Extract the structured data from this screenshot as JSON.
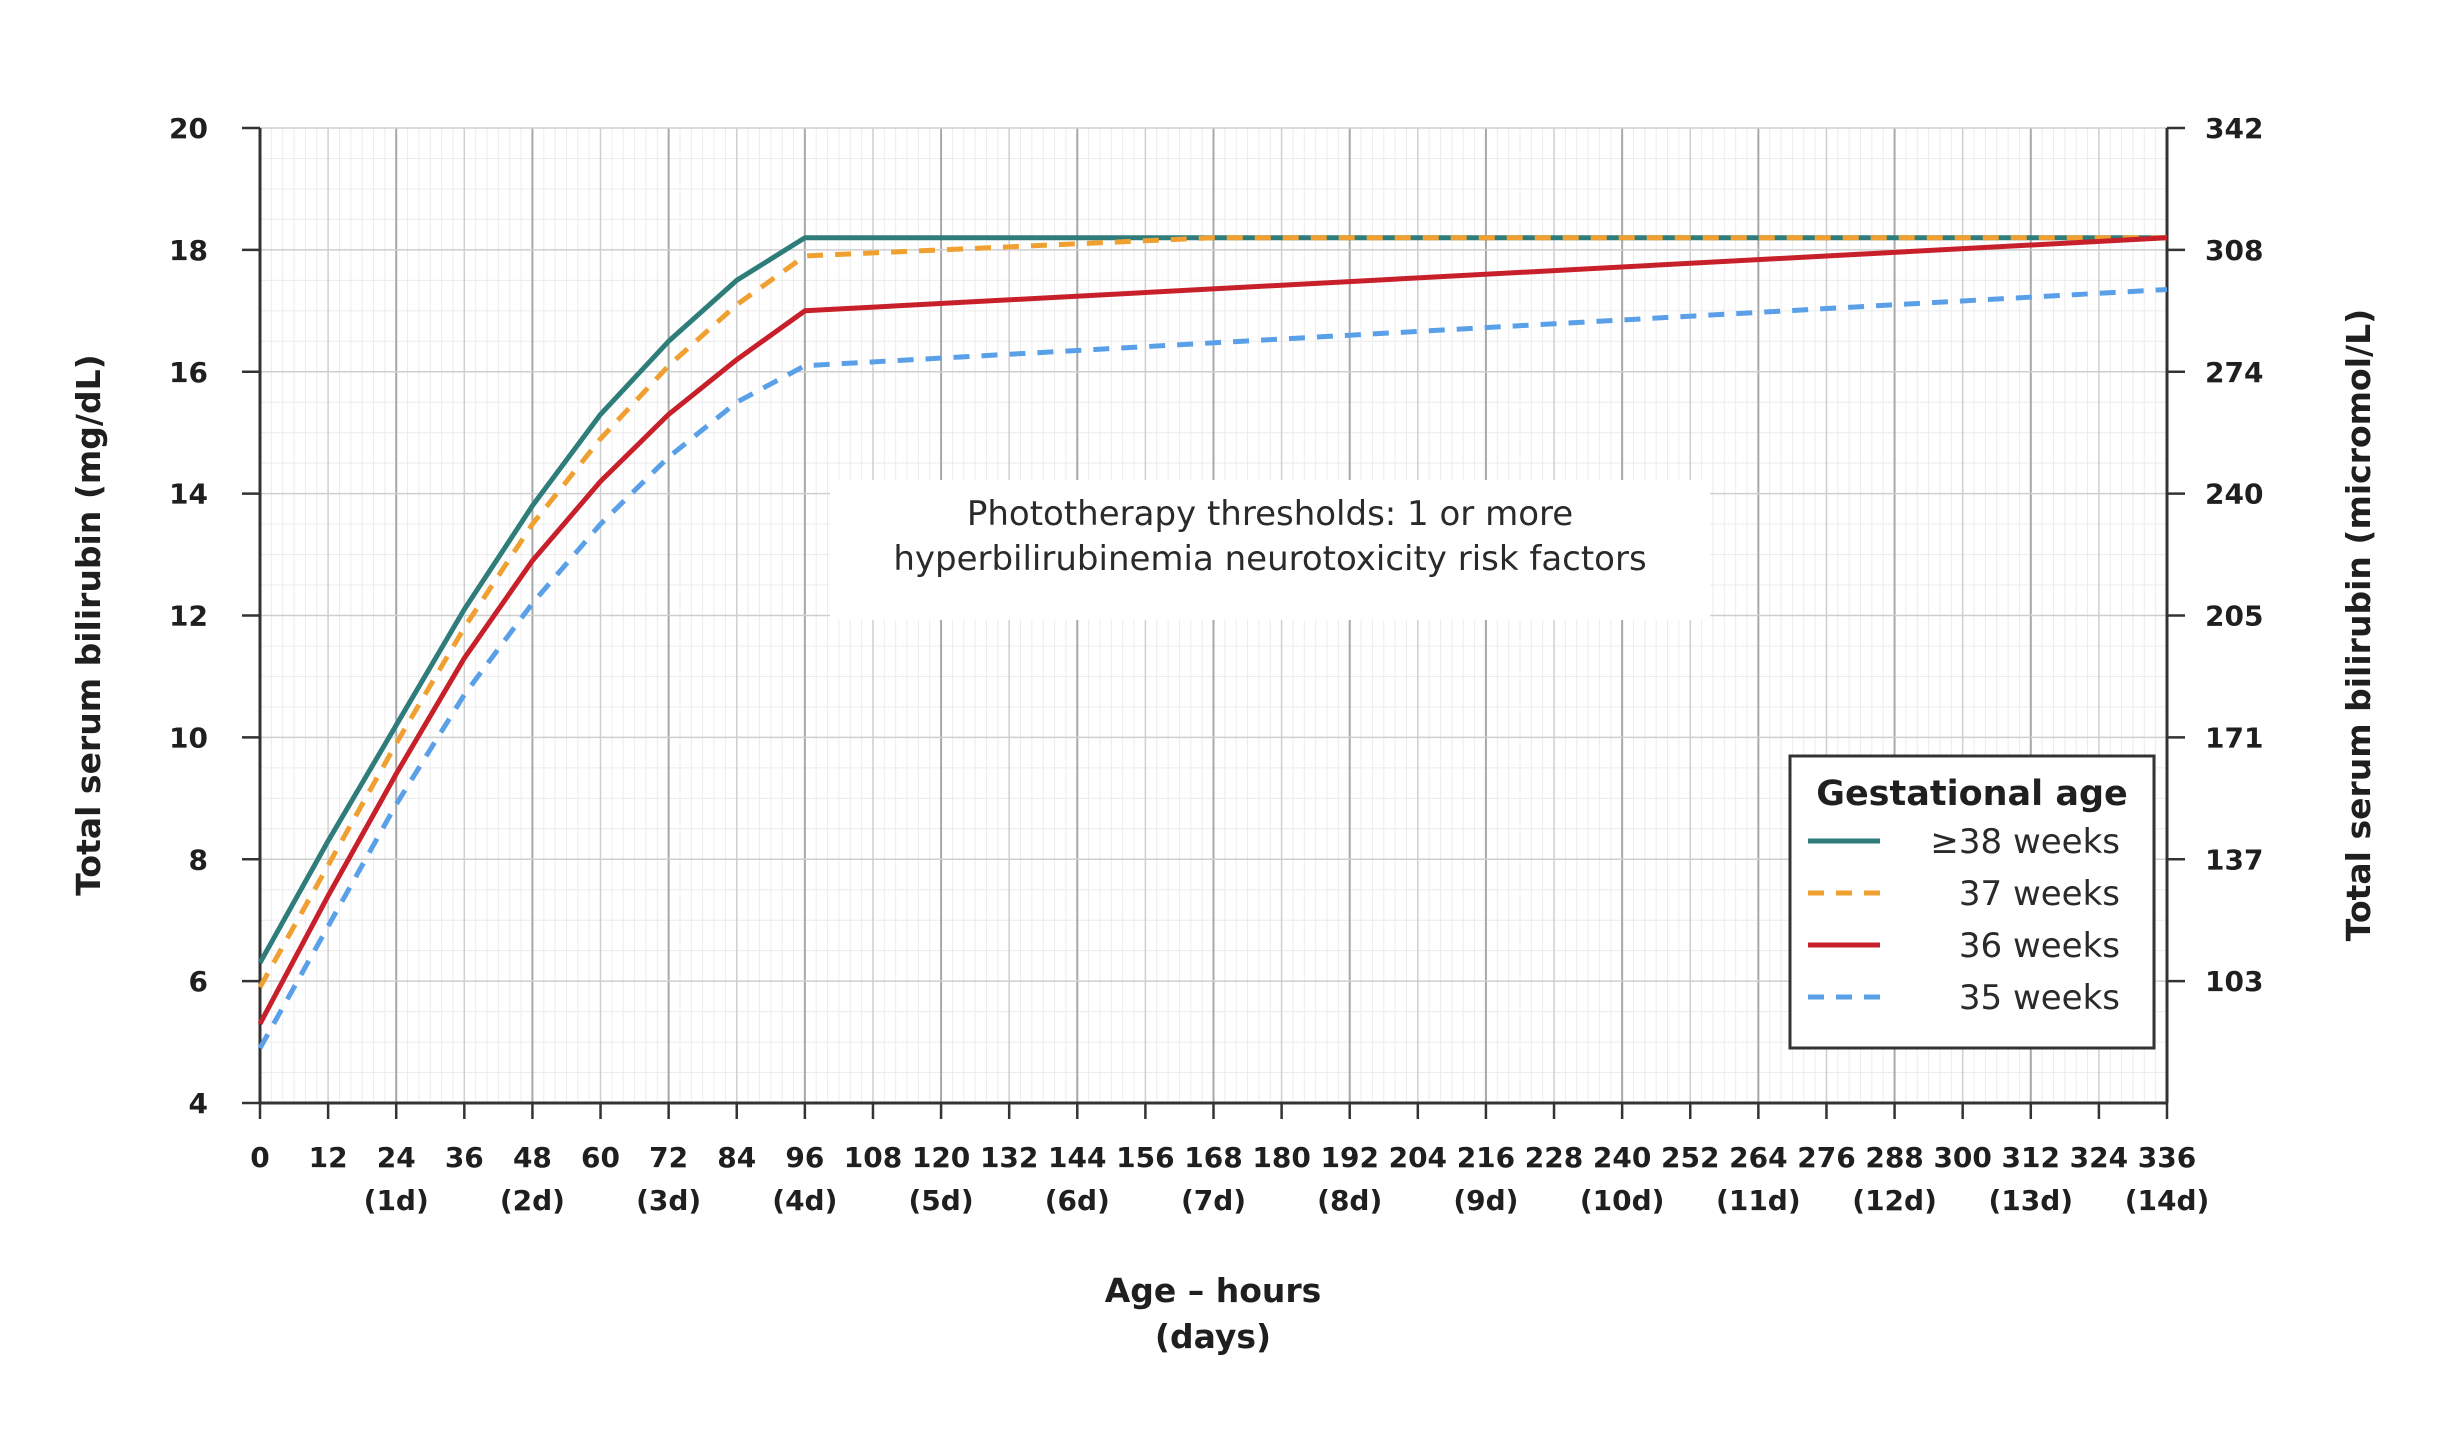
{
  "chart_data": {
    "type": "line",
    "annotation": [
      "Phototherapy thresholds: 1 or more",
      "hyperbilirubinemia neurotoxicity risk factors"
    ],
    "xlabel": [
      "Age – hours",
      "(days)"
    ],
    "ylabel": "Total serum bilirubin (mg/dL)",
    "y2label": "Total serum bilirubin (micromol/L)",
    "xlim": [
      0,
      336
    ],
    "ylim": [
      4,
      20
    ],
    "x_ticks": [
      0,
      12,
      24,
      36,
      48,
      60,
      72,
      84,
      96,
      108,
      120,
      132,
      144,
      156,
      168,
      180,
      192,
      204,
      216,
      228,
      240,
      252,
      264,
      276,
      288,
      300,
      312,
      324,
      336
    ],
    "x_day_ticks": [
      {
        "x": 24,
        "label": "(1d)"
      },
      {
        "x": 48,
        "label": "(2d)"
      },
      {
        "x": 72,
        "label": "(3d)"
      },
      {
        "x": 96,
        "label": "(4d)"
      },
      {
        "x": 120,
        "label": "(5d)"
      },
      {
        "x": 144,
        "label": "(6d)"
      },
      {
        "x": 168,
        "label": "(7d)"
      },
      {
        "x": 192,
        "label": "(8d)"
      },
      {
        "x": 216,
        "label": "(9d)"
      },
      {
        "x": 240,
        "label": "(10d)"
      },
      {
        "x": 264,
        "label": "(11d)"
      },
      {
        "x": 288,
        "label": "(12d)"
      },
      {
        "x": 312,
        "label": "(13d)"
      },
      {
        "x": 336,
        "label": "(14d)"
      }
    ],
    "y_ticks": [
      4,
      6,
      8,
      10,
      12,
      14,
      16,
      18,
      20
    ],
    "y2_ticks": [
      {
        "y": 6,
        "label": "103"
      },
      {
        "y": 8,
        "label": "137"
      },
      {
        "y": 10,
        "label": "171"
      },
      {
        "y": 12,
        "label": "205"
      },
      {
        "y": 14,
        "label": "240"
      },
      {
        "y": 16,
        "label": "274"
      },
      {
        "y": 18,
        "label": "308"
      },
      {
        "y": 20,
        "label": "342"
      }
    ],
    "grid": true,
    "legend": {
      "title": "Gestational age",
      "position": "bottom-right"
    },
    "series": [
      {
        "name": "≥38 weeks",
        "color": "#2e7d7a",
        "dash": "solid",
        "points": [
          [
            0,
            6.3
          ],
          [
            12,
            8.3
          ],
          [
            24,
            10.2
          ],
          [
            36,
            12.1
          ],
          [
            48,
            13.8
          ],
          [
            60,
            15.3
          ],
          [
            72,
            16.5
          ],
          [
            84,
            17.5
          ],
          [
            96,
            18.2
          ],
          [
            168,
            18.2
          ],
          [
            336,
            18.2
          ]
        ]
      },
      {
        "name": "37 weeks",
        "color": "#f0a030",
        "dash": "dashed",
        "points": [
          [
            0,
            5.9
          ],
          [
            12,
            7.9
          ],
          [
            24,
            9.9
          ],
          [
            36,
            11.8
          ],
          [
            48,
            13.5
          ],
          [
            60,
            14.9
          ],
          [
            72,
            16.1
          ],
          [
            84,
            17.1
          ],
          [
            96,
            17.9
          ],
          [
            120,
            18.0
          ],
          [
            168,
            18.2
          ],
          [
            336,
            18.2
          ]
        ]
      },
      {
        "name": "36 weeks",
        "color": "#c8202a",
        "dash": "solid",
        "points": [
          [
            0,
            5.3
          ],
          [
            12,
            7.4
          ],
          [
            24,
            9.4
          ],
          [
            36,
            11.3
          ],
          [
            48,
            12.9
          ],
          [
            60,
            14.2
          ],
          [
            72,
            15.3
          ],
          [
            84,
            16.2
          ],
          [
            96,
            17.0
          ],
          [
            336,
            18.2
          ]
        ]
      },
      {
        "name": "35 weeks",
        "color": "#5aa0e8",
        "dash": "dashed",
        "points": [
          [
            0,
            4.9
          ],
          [
            12,
            6.9
          ],
          [
            24,
            8.9
          ],
          [
            36,
            10.7
          ],
          [
            48,
            12.2
          ],
          [
            60,
            13.5
          ],
          [
            72,
            14.6
          ],
          [
            84,
            15.5
          ],
          [
            96,
            16.1
          ],
          [
            336,
            17.35
          ]
        ]
      }
    ]
  }
}
